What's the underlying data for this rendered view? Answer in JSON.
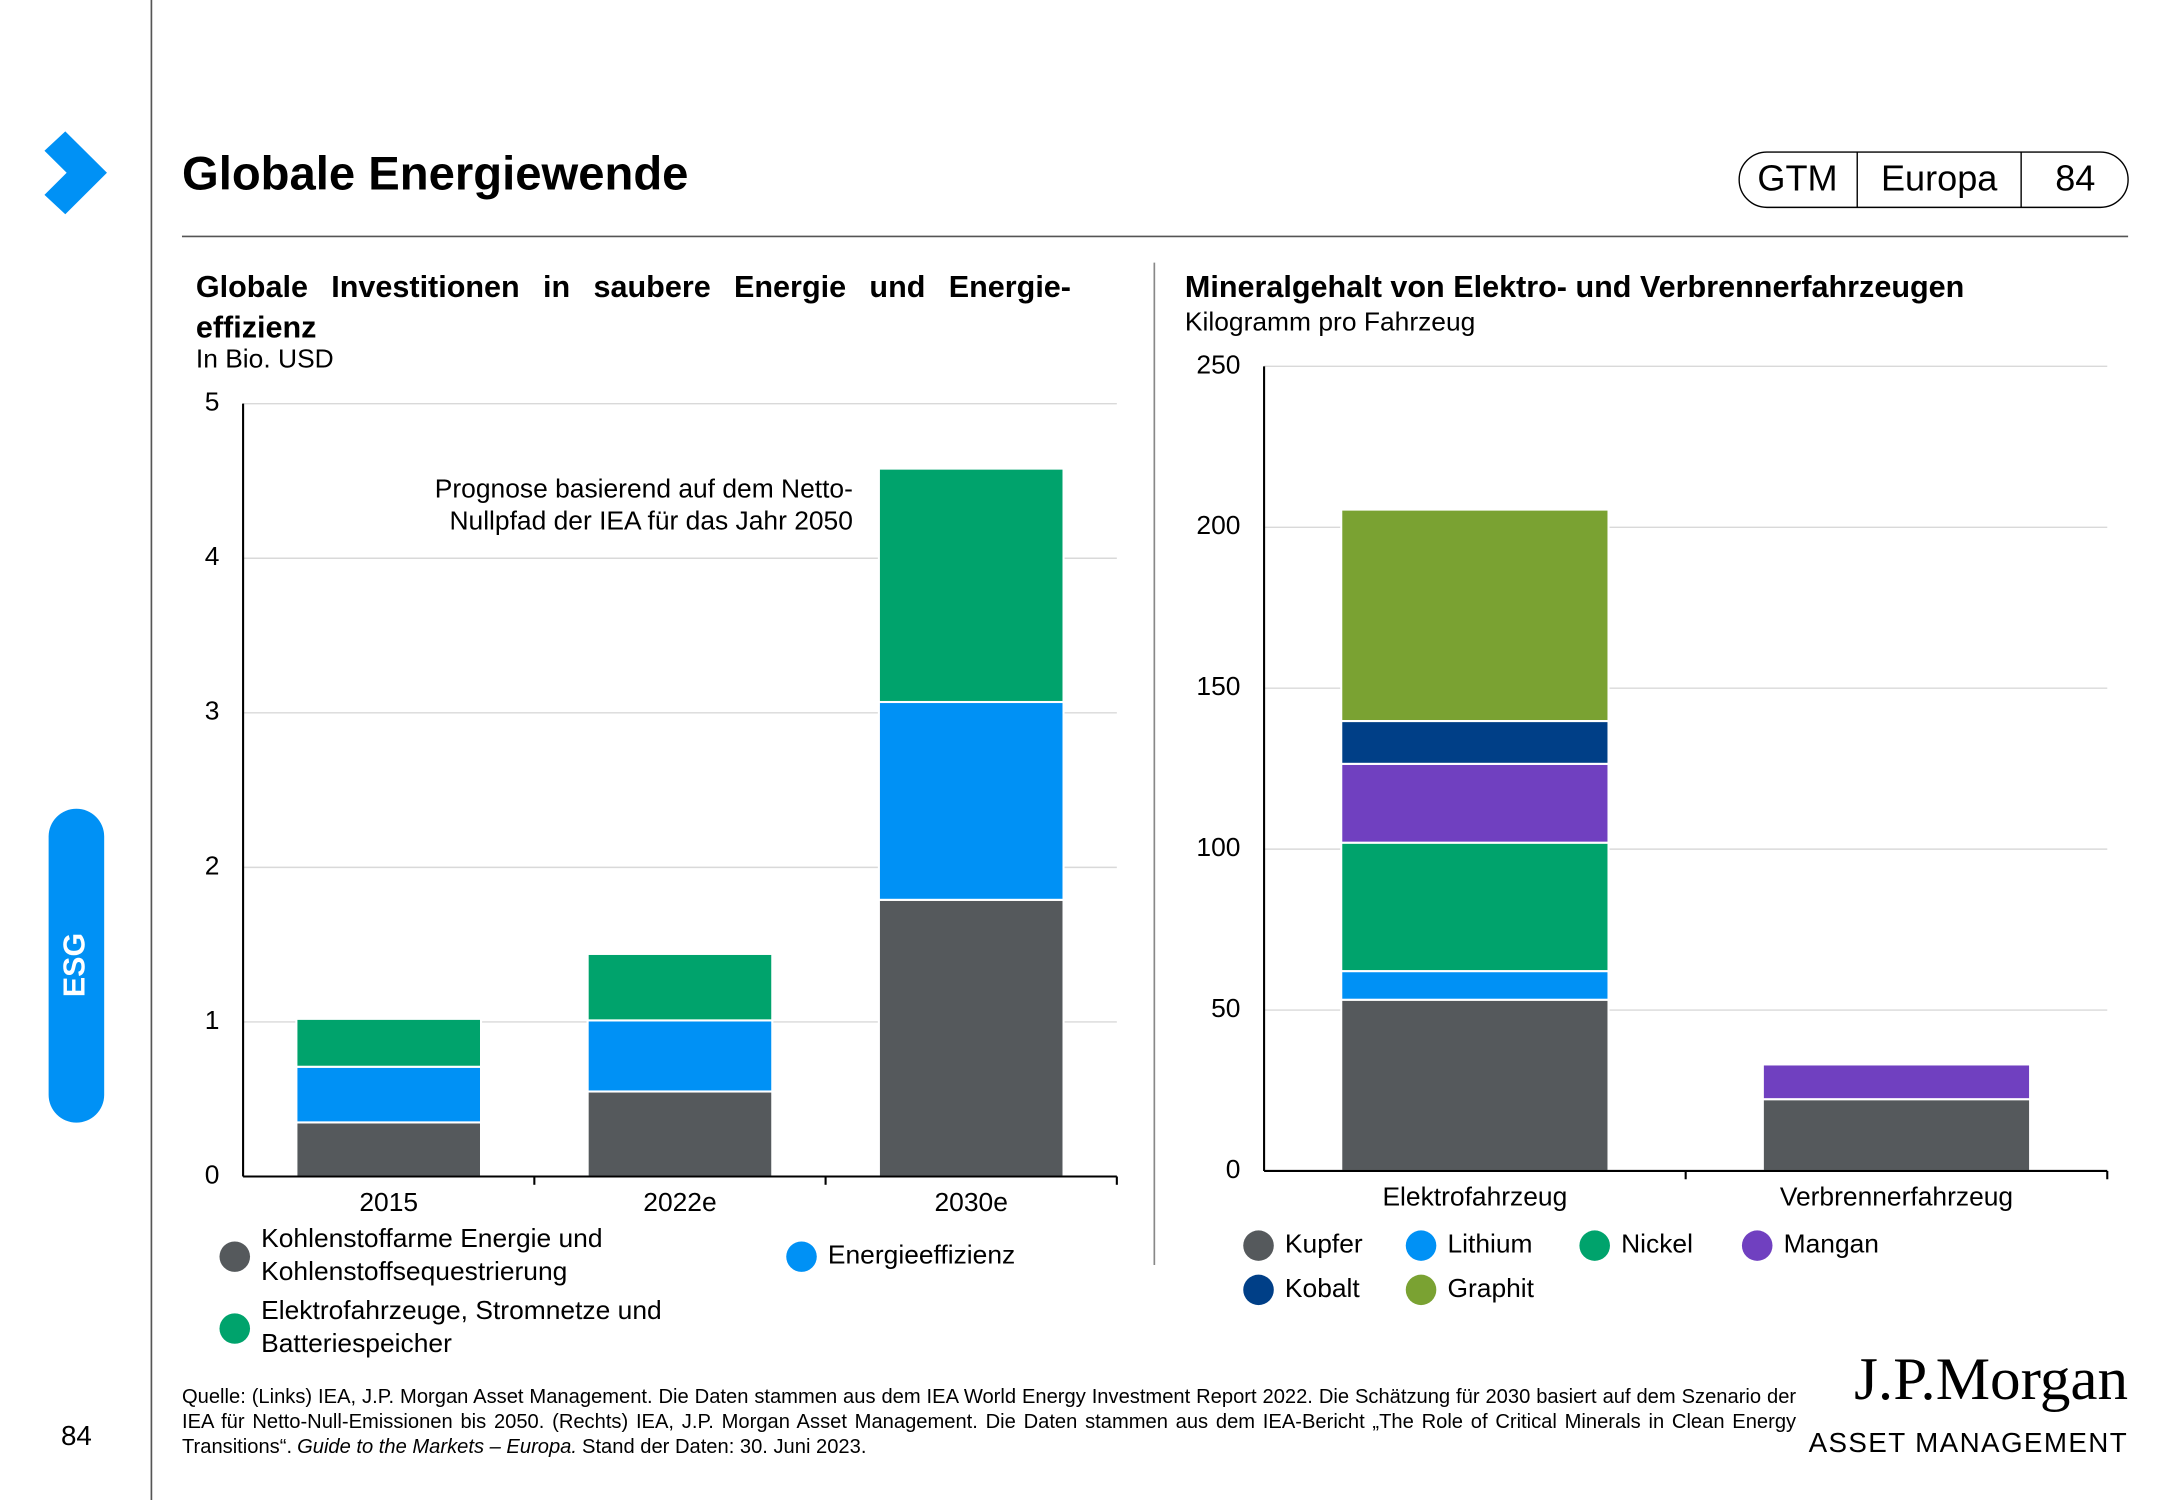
{
  "header": {
    "title": "Globale Energiewende",
    "badge": [
      "GTM",
      "Europa",
      "84"
    ],
    "section": "ESG",
    "page_number": "84"
  },
  "chart_data": [
    {
      "type": "bar",
      "stacked": true,
      "title": "Globale Investitionen in saubere Energie und Energie-effizienz",
      "subtitle": "In Bio. USD",
      "categories": [
        "2015",
        "2022e",
        "2030e"
      ],
      "series": [
        {
          "name": "Kohlenstoffarme Energie und Kohlenstoffsequestrierung",
          "color": "#55595c",
          "values": [
            0.35,
            0.55,
            1.79
          ]
        },
        {
          "name": "Energieeffizienz",
          "color": "#0091f5",
          "values": [
            0.36,
            0.46,
            1.28
          ]
        },
        {
          "name": "Elektrofahrzeuge, Stromnetze und Batteriespeicher",
          "color": "#00a36c",
          "values": [
            0.31,
            0.43,
            1.51
          ]
        }
      ],
      "ylim": [
        0,
        5
      ],
      "yticks": [
        0,
        1,
        2,
        3,
        4,
        5
      ],
      "grid": true,
      "annotation": [
        "Prognose basierend auf dem Netto-",
        "Nullpfad der IEA für das Jahr 2050"
      ]
    },
    {
      "type": "bar",
      "stacked": true,
      "title": "Mineralgehalt von Elektro- und Verbrennerfahrzeugen",
      "subtitle": "Kilogramm pro Fahrzeug",
      "categories": [
        "Elektrofahrzeug",
        "Verbrennerfahrzeug"
      ],
      "series": [
        {
          "name": "Kupfer",
          "color": "#55595c",
          "values": [
            53.2,
            22.3
          ]
        },
        {
          "name": "Lithium",
          "color": "#0091f5",
          "values": [
            8.9,
            0
          ]
        },
        {
          "name": "Nickel",
          "color": "#00a36c",
          "values": [
            39.9,
            0
          ]
        },
        {
          "name": "Mangan",
          "color": "#7040c0",
          "values": [
            24.5,
            10.8
          ]
        },
        {
          "name": "Kobalt",
          "color": "#003f87",
          "values": [
            13.3,
            0
          ]
        },
        {
          "name": "Graphit",
          "color": "#7aa232",
          "values": [
            65.7,
            0
          ]
        }
      ],
      "ylim": [
        0,
        250
      ],
      "yticks": [
        0,
        50,
        100,
        150,
        200,
        250
      ],
      "grid": true
    }
  ],
  "footnote": {
    "text": "Quelle: (Links) IEA, J.P. Morgan Asset Management. Die Daten stammen aus dem IEA World Energy Investment Report 2022. Die Schätzung für 2030 basiert auf dem Szenario der IEA für Netto-Null-Emissionen bis 2050. (Rechts) IEA, J.P. Morgan Asset Management. Die Daten stammen aus dem IEA-Bericht „The Role of Critical Minerals in Clean Energy Transitions“.",
    "italic": "Guide to the Markets – Europa.",
    "end": "Stand der Daten: 30. Juni 2023."
  },
  "logo": {
    "name": "J.P.Morgan",
    "subtitle": "ASSET MANAGEMENT"
  }
}
